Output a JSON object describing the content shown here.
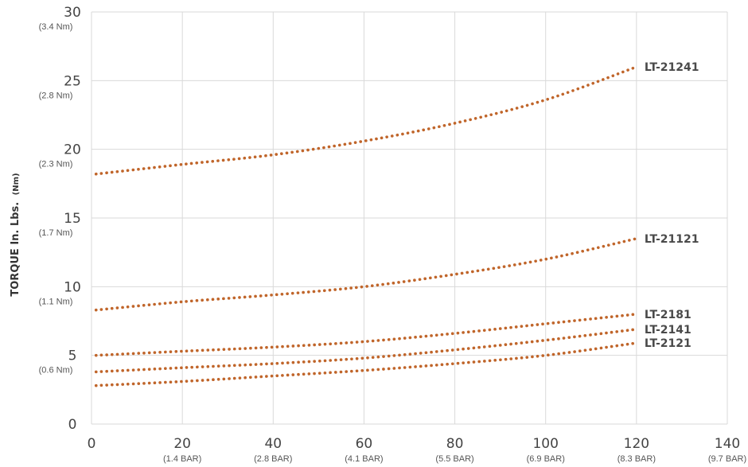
{
  "chart_data": {
    "type": "line",
    "ylabel": "TORQUE In. Lbs.",
    "ylabel_unit": "(Nm)",
    "xlim": [
      0,
      140
    ],
    "ylim": [
      0,
      30
    ],
    "grid": true,
    "line_style": "dotted",
    "series_color": "#c0652a",
    "x_ticks": [
      {
        "value": 0,
        "label": "0",
        "sub": ""
      },
      {
        "value": 20,
        "label": "20",
        "sub": "(1.4 BAR)"
      },
      {
        "value": 40,
        "label": "40",
        "sub": "(2.8 BAR)"
      },
      {
        "value": 60,
        "label": "60",
        "sub": "(4.1 BAR)"
      },
      {
        "value": 80,
        "label": "80",
        "sub": "(5.5 BAR)"
      },
      {
        "value": 100,
        "label": "100",
        "sub": "(6.9 BAR)"
      },
      {
        "value": 120,
        "label": "120",
        "sub": "(8.3 BAR)"
      },
      {
        "value": 140,
        "label": "140",
        "sub": "(9.7 BAR)"
      }
    ],
    "y_ticks": [
      {
        "value": 0,
        "label": "0",
        "sub": ""
      },
      {
        "value": 5,
        "label": "5",
        "sub": "(0.6 Nm)"
      },
      {
        "value": 10,
        "label": "10",
        "sub": "(1.1 Nm)"
      },
      {
        "value": 15,
        "label": "15",
        "sub": "(1.7 Nm)"
      },
      {
        "value": 20,
        "label": "20",
        "sub": "(2.3 Nm)"
      },
      {
        "value": 25,
        "label": "25",
        "sub": "(2.8 Nm)"
      },
      {
        "value": 30,
        "label": "30",
        "sub": "(3.4 Nm)"
      }
    ],
    "series": [
      {
        "name": "LT-21241",
        "x": [
          1,
          20,
          40,
          60,
          80,
          100,
          120
        ],
        "y": [
          18.2,
          18.9,
          19.6,
          20.6,
          21.9,
          23.6,
          26.0
        ]
      },
      {
        "name": "LT-21121",
        "x": [
          1,
          20,
          40,
          60,
          80,
          100,
          120
        ],
        "y": [
          8.3,
          8.9,
          9.4,
          10.0,
          10.9,
          12.0,
          13.5
        ]
      },
      {
        "name": "LT-2181",
        "x": [
          1,
          20,
          40,
          60,
          80,
          100,
          120
        ],
        "y": [
          5.0,
          5.3,
          5.6,
          6.0,
          6.6,
          7.3,
          8.0
        ]
      },
      {
        "name": "LT-2141",
        "x": [
          1,
          20,
          40,
          60,
          80,
          100,
          120
        ],
        "y": [
          3.8,
          4.1,
          4.4,
          4.8,
          5.4,
          6.1,
          6.9
        ]
      },
      {
        "name": "LT-2121",
        "x": [
          1,
          20,
          40,
          60,
          80,
          100,
          120
        ],
        "y": [
          2.8,
          3.1,
          3.5,
          3.9,
          4.4,
          5.0,
          5.9
        ]
      }
    ]
  }
}
